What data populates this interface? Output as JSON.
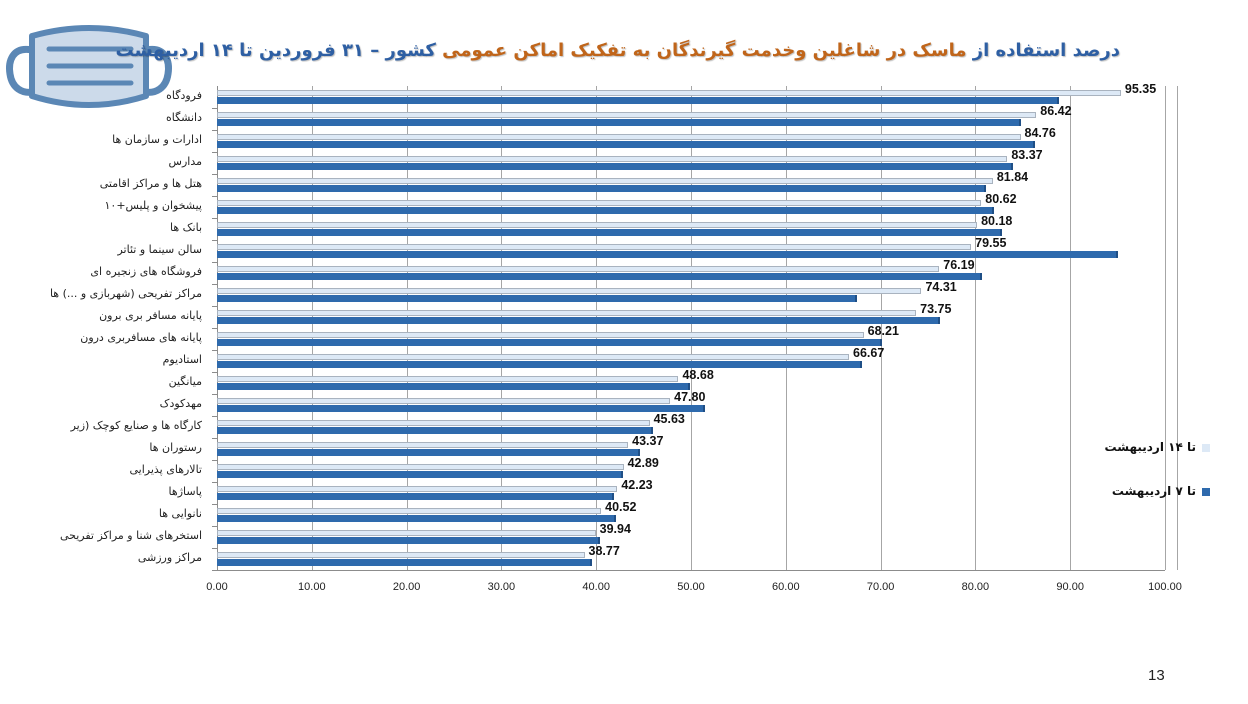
{
  "title": {
    "part1_blue": "درصد استفاده از ",
    "part2_orange": "ماسک در شاغلین وخدمت گیرندگان به تفکیک اماکن عمومی",
    "part3_blue": " کشور  – ۳۱ فروردین تا ۱۴ اردیبهشت"
  },
  "colors": {
    "series_14": "#dde9f6",
    "series_7": "#2e6aad",
    "title_blue": "#2e5fa3",
    "title_orange": "#c0651a"
  },
  "legend": {
    "item1": "تا ۱۴ اردیبهشت",
    "item2": "تا ۷ اردیبهشت"
  },
  "page_number": "13",
  "chart_data": {
    "type": "bar",
    "orientation": "horizontal",
    "title": "درصد استفاده از ماسک در شاغلین وخدمت گیرندگان به تفکیک اماکن عمومی کشور – ۳۱ فروردین تا ۱۴ اردیبهشت",
    "xlabel": "",
    "ylabel": "",
    "xlim": [
      0,
      100
    ],
    "x_ticks": [
      "0.00",
      "10.00",
      "20.00",
      "30.00",
      "40.00",
      "50.00",
      "60.00",
      "70.00",
      "80.00",
      "90.00",
      "100.00"
    ],
    "grid": true,
    "legend_position": "right",
    "categories": [
      "فرودگاه",
      "دانشگاه",
      "ادارات و سازمان ها",
      "مدارس",
      "هتل ها و مراکز اقامتی",
      "پیشخوان و پلیس+۱۰",
      "بانک ها",
      "سالن سینما و تئاتر",
      "فروشگاه های زنجیره ای",
      "مراکز تفریحی (شهربازی و ...) ها",
      "پایانه مسافر بری برون ",
      "پایانه های مسافربری درون ",
      "استادیوم",
      "میانگین",
      "مهدکودک",
      "کارگاه ها و صنایع کوچک (زیر ",
      "رستوران ها",
      "تالارهای پذیرایی",
      "پاساژها",
      "نانوایی ها",
      "استخرهای شنا و مراکز تفریحی ",
      "مراکز ورزشی"
    ],
    "series": [
      {
        "name": "تا ۱۴ اردیبهشت",
        "color": "#dde9f6",
        "values": [
          95.35,
          86.42,
          84.76,
          83.37,
          81.84,
          80.62,
          80.18,
          79.55,
          76.19,
          74.31,
          73.75,
          68.21,
          66.67,
          48.68,
          47.8,
          45.63,
          43.37,
          42.89,
          42.23,
          40.52,
          39.94,
          38.77
        ],
        "labels": [
          "95.35",
          "86.42",
          "84.76",
          "83.37",
          "81.84",
          "80.62",
          "80.18",
          "79.55",
          "76.19",
          "74.31",
          "73.75",
          "68.21",
          "66.67",
          "48.68",
          "47.80",
          "45.63",
          "43.37",
          "42.89",
          "42.23",
          "40.52",
          "39.94",
          "38.77"
        ]
      },
      {
        "name": "تا ۷ اردیبهشت",
        "color": "#2e6aad",
        "values": [
          88.8,
          84.8,
          86.3,
          84.0,
          81.1,
          82.0,
          82.8,
          95.0,
          80.7,
          67.5,
          76.3,
          70.1,
          68.0,
          49.9,
          51.5,
          46.0,
          44.6,
          42.8,
          41.9,
          42.1,
          40.4,
          39.6
        ]
      }
    ]
  }
}
